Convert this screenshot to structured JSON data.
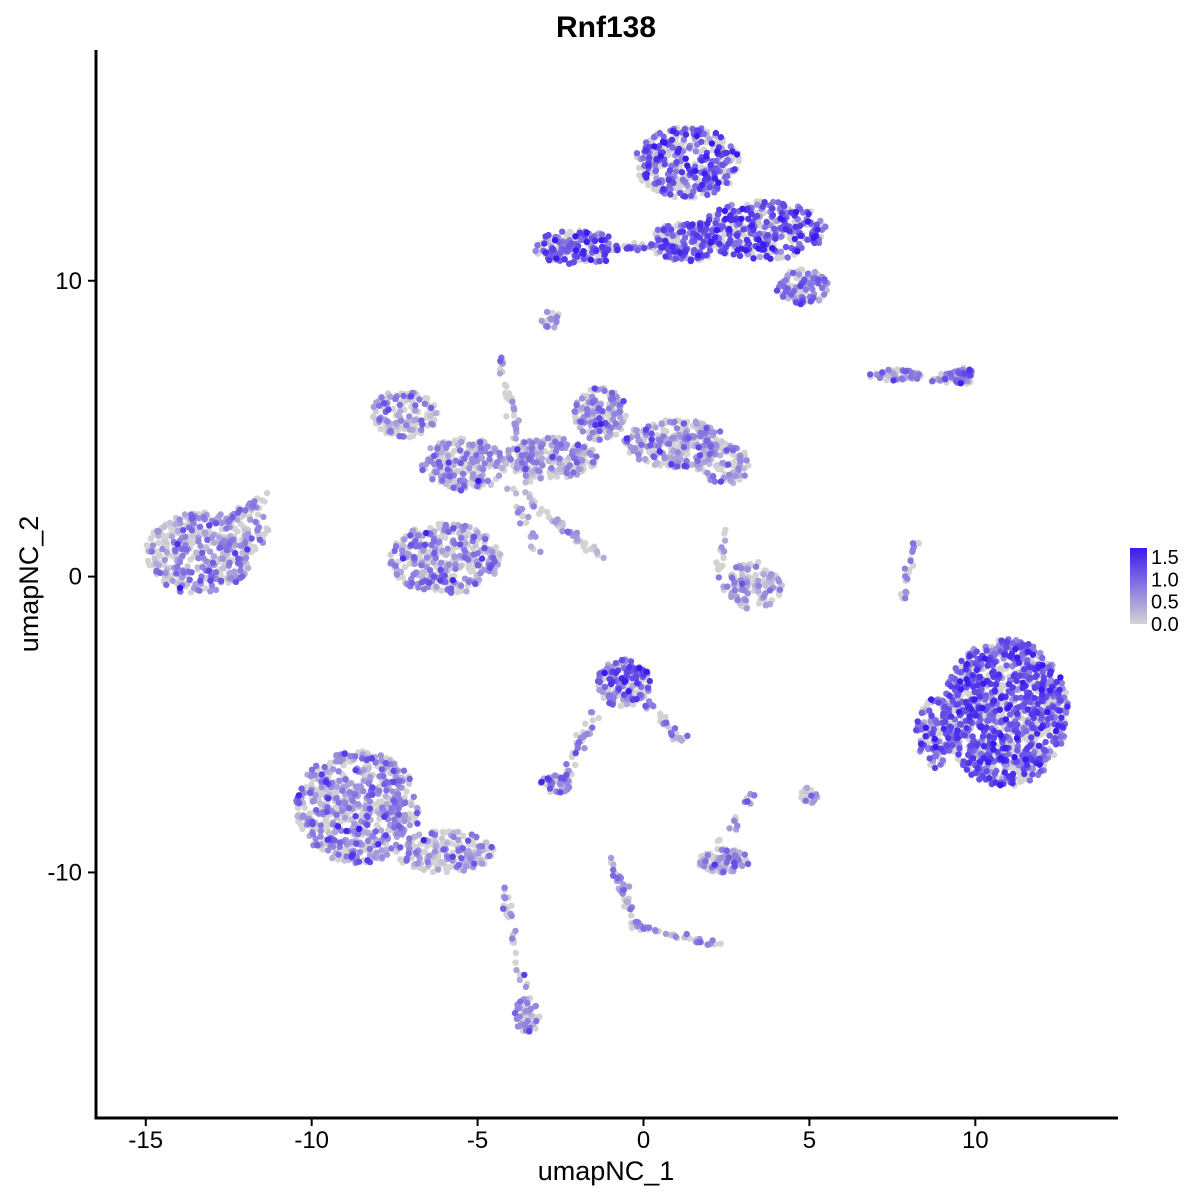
{
  "chart_data": {
    "type": "scatter",
    "title": "Rnf138",
    "xlabel": "umapNC_1",
    "ylabel": "umapNC_2",
    "xlim": [
      -16.5,
      14.3
    ],
    "ylim": [
      -18.3,
      17.8
    ],
    "x_ticks": [
      "-15",
      "-10",
      "-5",
      "0",
      "5",
      "10"
    ],
    "x_tick_values": [
      -15,
      -10,
      -5,
      0,
      5,
      10
    ],
    "y_ticks": [
      "-10",
      "0",
      "10"
    ],
    "y_tick_values": [
      -10,
      0,
      10
    ],
    "grid": false,
    "color_scale": {
      "low_color": "#d3d3d3",
      "high_color": "#3a1bef",
      "min": 0.0,
      "max": 1.7,
      "legend_ticks": [
        "1.5",
        "1.0",
        "0.5",
        "0.0"
      ],
      "legend_tick_values": [
        1.5,
        1.0,
        0.5,
        0.0
      ],
      "legend_position": "right"
    },
    "clusters": [
      {
        "cx": -13.4,
        "cy": 0.8,
        "rx": 1.6,
        "ry": 1.4,
        "n": 360,
        "expr": 0.55,
        "spread": 0.35
      },
      {
        "cx": -12.0,
        "cy": 1.6,
        "rx": 0.7,
        "ry": 0.8,
        "n": 60,
        "expr": 0.5,
        "spread": 0.35
      },
      {
        "cx": -7.2,
        "cy": 5.5,
        "rx": 1.0,
        "ry": 0.8,
        "n": 130,
        "expr": 0.55,
        "spread": 0.35
      },
      {
        "cx": -6.0,
        "cy": 0.6,
        "rx": 1.7,
        "ry": 1.2,
        "n": 360,
        "expr": 0.5,
        "spread": 0.4
      },
      {
        "cx": -5.4,
        "cy": 3.8,
        "rx": 1.3,
        "ry": 0.9,
        "n": 220,
        "expr": 0.45,
        "spread": 0.4
      },
      {
        "cx": -2.8,
        "cy": 4.0,
        "rx": 1.4,
        "ry": 0.7,
        "n": 220,
        "expr": 0.4,
        "spread": 0.4
      },
      {
        "cx": -1.3,
        "cy": 5.5,
        "rx": 0.8,
        "ry": 0.9,
        "n": 160,
        "expr": 0.5,
        "spread": 0.35
      },
      {
        "cx": 1.0,
        "cy": 4.5,
        "rx": 1.6,
        "ry": 0.8,
        "n": 260,
        "expr": 0.5,
        "spread": 0.35
      },
      {
        "cx": 2.4,
        "cy": 3.8,
        "rx": 0.8,
        "ry": 0.7,
        "n": 100,
        "expr": 0.5,
        "spread": 0.35
      },
      {
        "cx": -2.0,
        "cy": 11.1,
        "rx": 1.3,
        "ry": 0.6,
        "n": 150,
        "expr": 1.0,
        "spread": 0.35
      },
      {
        "cx": 1.3,
        "cy": 14.0,
        "rx": 1.6,
        "ry": 1.2,
        "n": 360,
        "expr": 1.1,
        "spread": 0.35
      },
      {
        "cx": 3.6,
        "cy": 11.7,
        "rx": 1.9,
        "ry": 1.0,
        "n": 340,
        "expr": 1.1,
        "spread": 0.35
      },
      {
        "cx": 1.3,
        "cy": 11.3,
        "rx": 1.1,
        "ry": 0.7,
        "n": 160,
        "expr": 1.0,
        "spread": 0.35
      },
      {
        "cx": 4.8,
        "cy": 9.8,
        "rx": 0.8,
        "ry": 0.6,
        "n": 100,
        "expr": 0.7,
        "spread": 0.4
      },
      {
        "cx": 3.3,
        "cy": -0.3,
        "rx": 0.9,
        "ry": 0.8,
        "n": 120,
        "expr": 0.35,
        "spread": 0.35
      },
      {
        "cx": -0.6,
        "cy": -3.6,
        "rx": 0.8,
        "ry": 0.8,
        "n": 160,
        "expr": 0.9,
        "spread": 0.4
      },
      {
        "cx": -8.6,
        "cy": -7.8,
        "rx": 1.9,
        "ry": 1.9,
        "n": 620,
        "expr": 0.6,
        "spread": 0.35
      },
      {
        "cx": -6.0,
        "cy": -9.3,
        "rx": 1.5,
        "ry": 0.7,
        "n": 190,
        "expr": 0.45,
        "spread": 0.4
      },
      {
        "cx": 10.9,
        "cy": -4.6,
        "rx": 1.9,
        "ry": 2.5,
        "n": 1100,
        "expr": 1.05,
        "spread": 0.35
      },
      {
        "cx": 8.8,
        "cy": -5.3,
        "rx": 0.6,
        "ry": 1.2,
        "n": 120,
        "expr": 0.95,
        "spread": 0.35
      },
      {
        "cx": 2.4,
        "cy": -9.6,
        "rx": 0.8,
        "ry": 0.4,
        "n": 100,
        "expr": 0.45,
        "spread": 0.35
      },
      {
        "cx": -2.6,
        "cy": -7.0,
        "rx": 0.5,
        "ry": 0.3,
        "n": 50,
        "expr": 0.6,
        "spread": 0.35
      },
      {
        "cx": -3.5,
        "cy": -14.8,
        "rx": 0.4,
        "ry": 0.6,
        "n": 50,
        "expr": 0.6,
        "spread": 0.3
      },
      {
        "cx": 9.6,
        "cy": 6.8,
        "rx": 0.4,
        "ry": 0.3,
        "n": 40,
        "expr": 0.9,
        "spread": 0.3
      },
      {
        "cx": 7.6,
        "cy": 6.8,
        "rx": 0.8,
        "ry": 0.2,
        "n": 50,
        "expr": 0.65,
        "spread": 0.35
      },
      {
        "cx": 5.0,
        "cy": -7.4,
        "rx": 0.3,
        "ry": 0.3,
        "n": 20,
        "expr": 0.5,
        "spread": 0.3
      },
      {
        "cx": -2.8,
        "cy": 8.7,
        "rx": 0.3,
        "ry": 0.3,
        "n": 20,
        "expr": 0.6,
        "spread": 0.3
      }
    ],
    "trails": [
      {
        "from": [
          -12.8,
          1.7
        ],
        "to": [
          -11.4,
          2.7
        ],
        "n": 25,
        "expr": 0.6,
        "jitter": 0.25
      },
      {
        "from": [
          -4.3,
          7.5
        ],
        "to": [
          -3.4,
          2.5
        ],
        "n": 45,
        "expr": 0.5,
        "jitter": 0.2
      },
      {
        "from": [
          -3.4,
          2.5
        ],
        "to": [
          -1.2,
          0.6
        ],
        "n": 45,
        "expr": 0.45,
        "jitter": 0.15
      },
      {
        "from": [
          -4.0,
          3.0
        ],
        "to": [
          -3.2,
          0.8
        ],
        "n": 20,
        "expr": 0.45,
        "jitter": 0.2
      },
      {
        "from": [
          -3.0,
          11.0
        ],
        "to": [
          1.0,
          11.2
        ],
        "n": 60,
        "expr": 1.0,
        "jitter": 0.15
      },
      {
        "from": [
          -1.4,
          -4.5
        ],
        "to": [
          -2.4,
          -6.8
        ],
        "n": 40,
        "expr": 0.7,
        "jitter": 0.2
      },
      {
        "from": [
          0.0,
          -4.2
        ],
        "to": [
          1.2,
          -5.6
        ],
        "n": 30,
        "expr": 0.7,
        "jitter": 0.2
      },
      {
        "from": [
          -1.0,
          -9.5
        ],
        "to": [
          -0.2,
          -11.8
        ],
        "n": 40,
        "expr": 0.55,
        "jitter": 0.2
      },
      {
        "from": [
          -0.2,
          -11.8
        ],
        "to": [
          2.3,
          -12.5
        ],
        "n": 40,
        "expr": 0.5,
        "jitter": 0.15
      },
      {
        "from": [
          -4.2,
          -10.5
        ],
        "to": [
          -3.6,
          -14.0
        ],
        "n": 30,
        "expr": 0.45,
        "jitter": 0.2
      },
      {
        "from": [
          8.2,
          1.2
        ],
        "to": [
          7.8,
          -0.8
        ],
        "n": 25,
        "expr": 0.6,
        "jitter": 0.15
      },
      {
        "from": [
          8.6,
          6.6
        ],
        "to": [
          9.8,
          6.8
        ],
        "n": 25,
        "expr": 0.85,
        "jitter": 0.15
      },
      {
        "from": [
          2.5,
          1.5
        ],
        "to": [
          2.2,
          0.0
        ],
        "n": 15,
        "expr": 0.4,
        "jitter": 0.2
      },
      {
        "from": [
          2.3,
          -9.0
        ],
        "to": [
          3.4,
          -7.3
        ],
        "n": 15,
        "expr": 0.4,
        "jitter": 0.2
      }
    ]
  }
}
